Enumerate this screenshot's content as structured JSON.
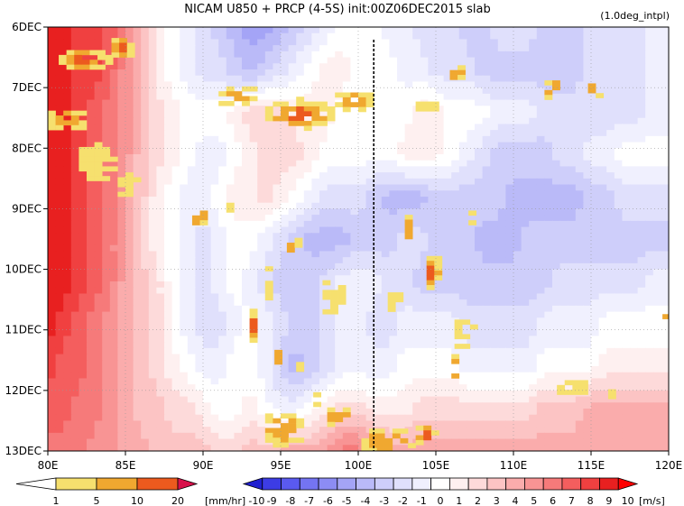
{
  "title": "NICAM   U850 + PRCP (4-5S)  init:00Z06DEC2015  slab",
  "subtitle": "(1.0deg_intpl)",
  "chart_data": {
    "type": "heatmap",
    "xlim": [
      80,
      120
    ],
    "ylim": [
      "6DEC",
      "13DEC"
    ],
    "x_ticks": [
      "80E",
      "85E",
      "90E",
      "95E",
      "100E",
      "105E",
      "110E",
      "115E",
      "120E"
    ],
    "y_ticks": [
      "6DEC",
      "7DEC",
      "8DEC",
      "9DEC",
      "10DEC",
      "11DEC",
      "12DEC",
      "13DEC"
    ],
    "reference_line_lon": 101,
    "u850_colorbar": {
      "labels": [
        "-10",
        "-9",
        "-8",
        "-7",
        "-6",
        "-5",
        "-4",
        "-3",
        "-2",
        "-1",
        "0",
        "1",
        "2",
        "3",
        "4",
        "5",
        "6",
        "7",
        "8",
        "9",
        "10"
      ],
      "unit": "[m/s]",
      "colors": [
        "#2020d0",
        "#3c3ce4",
        "#5a5af0",
        "#7474f2",
        "#8c8cf4",
        "#a4a4f6",
        "#babaf8",
        "#ceceFA",
        "#e0e0fc",
        "#f0f0fe",
        "#ffffff",
        "#fef0f0",
        "#fddada",
        "#fcc4c4",
        "#faacac",
        "#f89494",
        "#f67a7a",
        "#f45e5e",
        "#f04040",
        "#e82020",
        "#ff0000"
      ]
    },
    "prcp_colorbar": {
      "labels": [
        "1",
        "5",
        "10",
        "20"
      ],
      "unit": "[mm/hr]",
      "colors": [
        "#ffffff",
        "#f6e06e",
        "#f0a830",
        "#ec5a1e",
        "#d8104a"
      ]
    },
    "u850_field": [
      [
        9,
        9,
        8,
        8,
        7,
        5,
        3,
        1,
        0,
        -1,
        -2,
        -3,
        -4,
        -5,
        -5,
        -4,
        -3,
        -2,
        -1,
        0,
        0,
        0,
        -1,
        -1,
        -2,
        -2,
        -2,
        -3,
        -3,
        -2,
        -2,
        -2,
        -3,
        -3,
        -3,
        -2,
        -2,
        -2,
        -2,
        -1,
        -1
      ],
      [
        9,
        9,
        8,
        8,
        7,
        5,
        3,
        1,
        0,
        -1,
        -2,
        -2,
        -3,
        -4,
        -3,
        -2,
        -1,
        0,
        1,
        1,
        0,
        0,
        0,
        -1,
        -1,
        -2,
        -2,
        -2,
        -3,
        -3,
        -3,
        -3,
        -3,
        -3,
        -3,
        -2,
        -2,
        -2,
        -2,
        -1,
        -1
      ],
      [
        9,
        9,
        8,
        7,
        6,
        5,
        3,
        2,
        1,
        0,
        0,
        0,
        1,
        2,
        2,
        2,
        1,
        1,
        1,
        0,
        0,
        0,
        0,
        0,
        1,
        1,
        0,
        0,
        0,
        -1,
        -1,
        -1,
        -2,
        -2,
        -2,
        -2,
        -2,
        -2,
        -2,
        -1,
        -1
      ],
      [
        9,
        9,
        8,
        7,
        6,
        5,
        3,
        2,
        1,
        0,
        -1,
        -1,
        0,
        1,
        2,
        2,
        2,
        1,
        0,
        0,
        0,
        0,
        0,
        1,
        1,
        1,
        0,
        -1,
        -2,
        -3,
        -3,
        -3,
        -3,
        -2,
        -2,
        -1,
        -1,
        0,
        0,
        0,
        0
      ],
      [
        9,
        9,
        8,
        7,
        6,
        4,
        3,
        1,
        0,
        -1,
        -1,
        0,
        1,
        1,
        2,
        1,
        0,
        -1,
        -2,
        -2,
        -2,
        -3,
        -4,
        -4,
        -4,
        -3,
        -3,
        -3,
        -3,
        -3,
        -4,
        -4,
        -4,
        -4,
        -4,
        -3,
        -3,
        -2,
        -2,
        -2,
        -2
      ],
      [
        9,
        9,
        8,
        7,
        6,
        4,
        2,
        1,
        0,
        -1,
        -2,
        -1,
        0,
        0,
        -1,
        -2,
        -3,
        -4,
        -4,
        -4,
        -3,
        -3,
        -3,
        -2,
        -2,
        -3,
        -3,
        -3,
        -4,
        -4,
        -4,
        -3,
        -3,
        -3,
        -3,
        -3,
        -3,
        -3,
        -3,
        -3,
        -3
      ],
      [
        9,
        9,
        8,
        7,
        6,
        4,
        3,
        2,
        0,
        -1,
        -2,
        -1,
        0,
        -1,
        -2,
        -3,
        -3,
        -3,
        -2,
        -1,
        -1,
        -1,
        -2,
        -2,
        -3,
        -3,
        -3,
        -3,
        -3,
        -3,
        -3,
        -3,
        -3,
        -2,
        -2,
        -2,
        -2,
        -2,
        -2,
        -1,
        -1
      ],
      [
        9,
        8,
        7,
        6,
        5,
        4,
        3,
        2,
        0,
        -1,
        -2,
        -2,
        -1,
        0,
        -1,
        -2,
        -3,
        -3,
        -2,
        -1,
        -1,
        -2,
        -2,
        -1,
        -1,
        -1,
        -1,
        -2,
        -2,
        -2,
        -2,
        -2,
        -1,
        -1,
        -1,
        -1,
        0,
        0,
        0,
        0,
        0
      ],
      [
        8,
        7,
        7,
        6,
        5,
        4,
        3,
        2,
        1,
        0,
        -1,
        -1,
        0,
        0,
        -1,
        -3,
        -4,
        -3,
        -2,
        -1,
        -1,
        -1,
        -1,
        0,
        0,
        0,
        0,
        -1,
        -1,
        -1,
        -1,
        -1,
        0,
        0,
        0,
        0,
        1,
        1,
        1,
        1,
        1
      ],
      [
        7,
        7,
        6,
        6,
        5,
        4,
        3,
        3,
        2,
        2,
        1,
        0,
        0,
        1,
        0,
        -1,
        -1,
        0,
        1,
        2,
        2,
        1,
        1,
        1,
        2,
        2,
        2,
        2,
        2,
        2,
        2,
        2,
        3,
        3,
        3,
        4,
        4,
        4,
        4,
        4,
        4
      ],
      [
        6,
        6,
        6,
        5,
        5,
        4,
        4,
        3,
        3,
        3,
        3,
        2,
        2,
        3,
        3,
        4,
        4,
        4,
        5,
        6,
        6,
        5,
        4,
        4,
        4,
        4,
        4,
        4,
        4,
        4,
        4,
        4,
        4,
        4,
        4,
        4,
        4,
        4,
        4,
        4,
        4
      ]
    ],
    "u850_time_rows": [
      "6.0",
      "6.7",
      "7.4",
      "8.1",
      "8.8",
      "9.5",
      "10.2",
      "10.9",
      "11.6",
      "12.3",
      "13.0"
    ],
    "precip_blobs": [
      {
        "lon": 82,
        "day": 6.5,
        "rlon": 1.8,
        "rday": 0.2,
        "level": 3
      },
      {
        "lon": 84.5,
        "day": 6.3,
        "rlon": 0.9,
        "rday": 0.2,
        "level": 3
      },
      {
        "lon": 81,
        "day": 7.5,
        "rlon": 1.5,
        "rday": 0.2,
        "level": 2
      },
      {
        "lon": 83,
        "day": 8.2,
        "rlon": 1.5,
        "rday": 0.3,
        "level": 1
      },
      {
        "lon": 85,
        "day": 8.6,
        "rlon": 1.0,
        "rday": 0.2,
        "level": 1
      },
      {
        "lon": 92,
        "day": 7.1,
        "rlon": 1.5,
        "rday": 0.2,
        "level": 2
      },
      {
        "lon": 96,
        "day": 7.4,
        "rlon": 2.5,
        "rday": 0.25,
        "level": 3
      },
      {
        "lon": 99.5,
        "day": 7.2,
        "rlon": 1.5,
        "rday": 0.2,
        "level": 2
      },
      {
        "lon": 104,
        "day": 7.3,
        "rlon": 0.8,
        "rday": 0.15,
        "level": 1
      },
      {
        "lon": 106,
        "day": 6.7,
        "rlon": 0.6,
        "rday": 0.15,
        "level": 2
      },
      {
        "lon": 112.5,
        "day": 7.0,
        "rlon": 1.0,
        "rday": 0.2,
        "level": 2
      },
      {
        "lon": 115,
        "day": 7.0,
        "rlon": 0.7,
        "rday": 0.15,
        "level": 2
      },
      {
        "lon": 89.5,
        "day": 9.1,
        "rlon": 0.7,
        "rday": 0.15,
        "level": 2
      },
      {
        "lon": 91.5,
        "day": 9.0,
        "rlon": 0.5,
        "rday": 0.1,
        "level": 1
      },
      {
        "lon": 95.5,
        "day": 9.6,
        "rlon": 0.6,
        "rday": 0.2,
        "level": 2
      },
      {
        "lon": 94,
        "day": 10.2,
        "rlon": 0.5,
        "rday": 0.25,
        "level": 1
      },
      {
        "lon": 98,
        "day": 10.4,
        "rlon": 0.8,
        "rday": 0.3,
        "level": 1
      },
      {
        "lon": 103,
        "day": 9.3,
        "rlon": 0.5,
        "rday": 0.2,
        "level": 2
      },
      {
        "lon": 104.5,
        "day": 10.0,
        "rlon": 0.6,
        "rday": 0.3,
        "level": 3
      },
      {
        "lon": 102,
        "day": 10.5,
        "rlon": 0.6,
        "rday": 0.2,
        "level": 1
      },
      {
        "lon": 107,
        "day": 9.1,
        "rlon": 0.4,
        "rday": 0.15,
        "level": 1
      },
      {
        "lon": 93,
        "day": 10.9,
        "rlon": 0.5,
        "rday": 0.25,
        "level": 3
      },
      {
        "lon": 94.5,
        "day": 11.4,
        "rlon": 0.4,
        "rday": 0.15,
        "level": 2
      },
      {
        "lon": 96,
        "day": 11.6,
        "rlon": 0.5,
        "rday": 0.15,
        "level": 1
      },
      {
        "lon": 97,
        "day": 12.1,
        "rlon": 0.4,
        "rday": 0.15,
        "level": 1
      },
      {
        "lon": 106.5,
        "day": 11.0,
        "rlon": 0.8,
        "rday": 0.25,
        "level": 1
      },
      {
        "lon": 106,
        "day": 11.6,
        "rlon": 0.5,
        "rday": 0.2,
        "level": 2
      },
      {
        "lon": 113.5,
        "day": 11.9,
        "rlon": 1.2,
        "rday": 0.15,
        "level": 1
      },
      {
        "lon": 116,
        "day": 12.0,
        "rlon": 0.4,
        "rday": 0.1,
        "level": 1
      },
      {
        "lon": 119.5,
        "day": 10.7,
        "rlon": 0.4,
        "rday": 0.2,
        "level": 2
      },
      {
        "lon": 95,
        "day": 12.6,
        "rlon": 1.5,
        "rday": 0.3,
        "level": 2
      },
      {
        "lon": 98.5,
        "day": 12.4,
        "rlon": 1.0,
        "rday": 0.2,
        "level": 2
      },
      {
        "lon": 101.5,
        "day": 12.8,
        "rlon": 1.8,
        "rday": 0.25,
        "level": 2
      },
      {
        "lon": 104,
        "day": 12.7,
        "rlon": 0.8,
        "rday": 0.2,
        "level": 3
      }
    ]
  }
}
